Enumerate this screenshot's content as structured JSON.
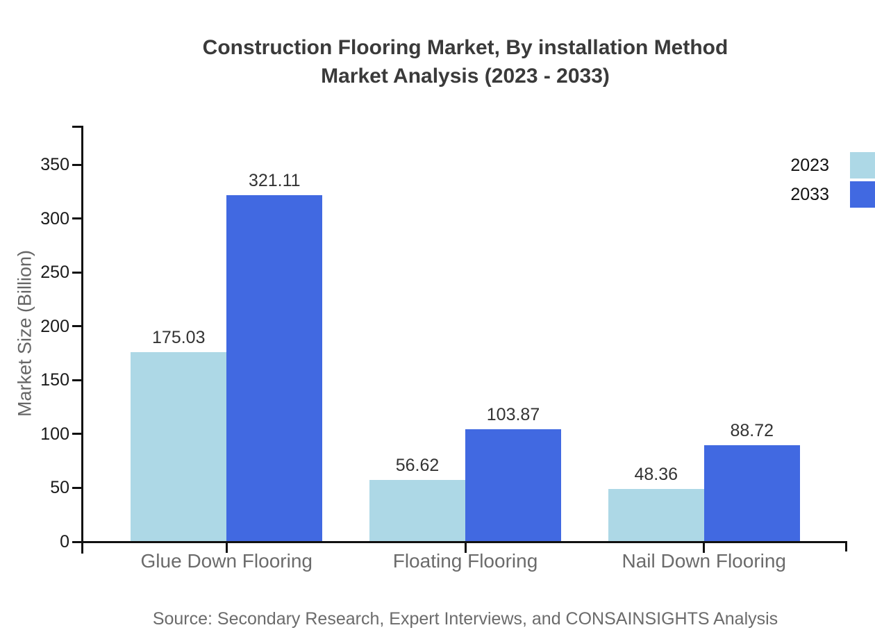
{
  "title": {
    "line1": "Construction Flooring Market, By installation Method",
    "line2": "Market Analysis (2023 - 2033)"
  },
  "source_note": "Source: Secondary Research, Expert Interviews, and CONSAINSIGHTS Analysis",
  "chart_data": {
    "type": "bar",
    "title": "Construction Flooring Market, By installation Method Market Analysis (2023 - 2033)",
    "categories": [
      "Glue Down Flooring",
      "Floating Flooring",
      "Nail Down Flooring"
    ],
    "series": [
      {
        "name": "2023",
        "color": "#add8e6",
        "values": [
          175.03,
          56.62,
          48.36
        ]
      },
      {
        "name": "2033",
        "color": "#4169e1",
        "values": [
          321.11,
          103.87,
          88.72
        ]
      }
    ],
    "xlabel": "",
    "ylabel": "Market Size (Billion)",
    "yticks": [
      0,
      50,
      100,
      150,
      200,
      250,
      300,
      350
    ],
    "ylim": [
      0,
      386
    ],
    "grid": false,
    "value_labels": true,
    "value_label_decimals": 2,
    "legend_position": "top-right",
    "axis_color": "#111111",
    "text_colors": {
      "title": "#3a3a3a",
      "tick_labels": "#1a1a1a",
      "category_labels": "#6b6b6b",
      "value_labels": "#333333",
      "axis_title": "#666666",
      "source": "#6b6b6b"
    }
  }
}
